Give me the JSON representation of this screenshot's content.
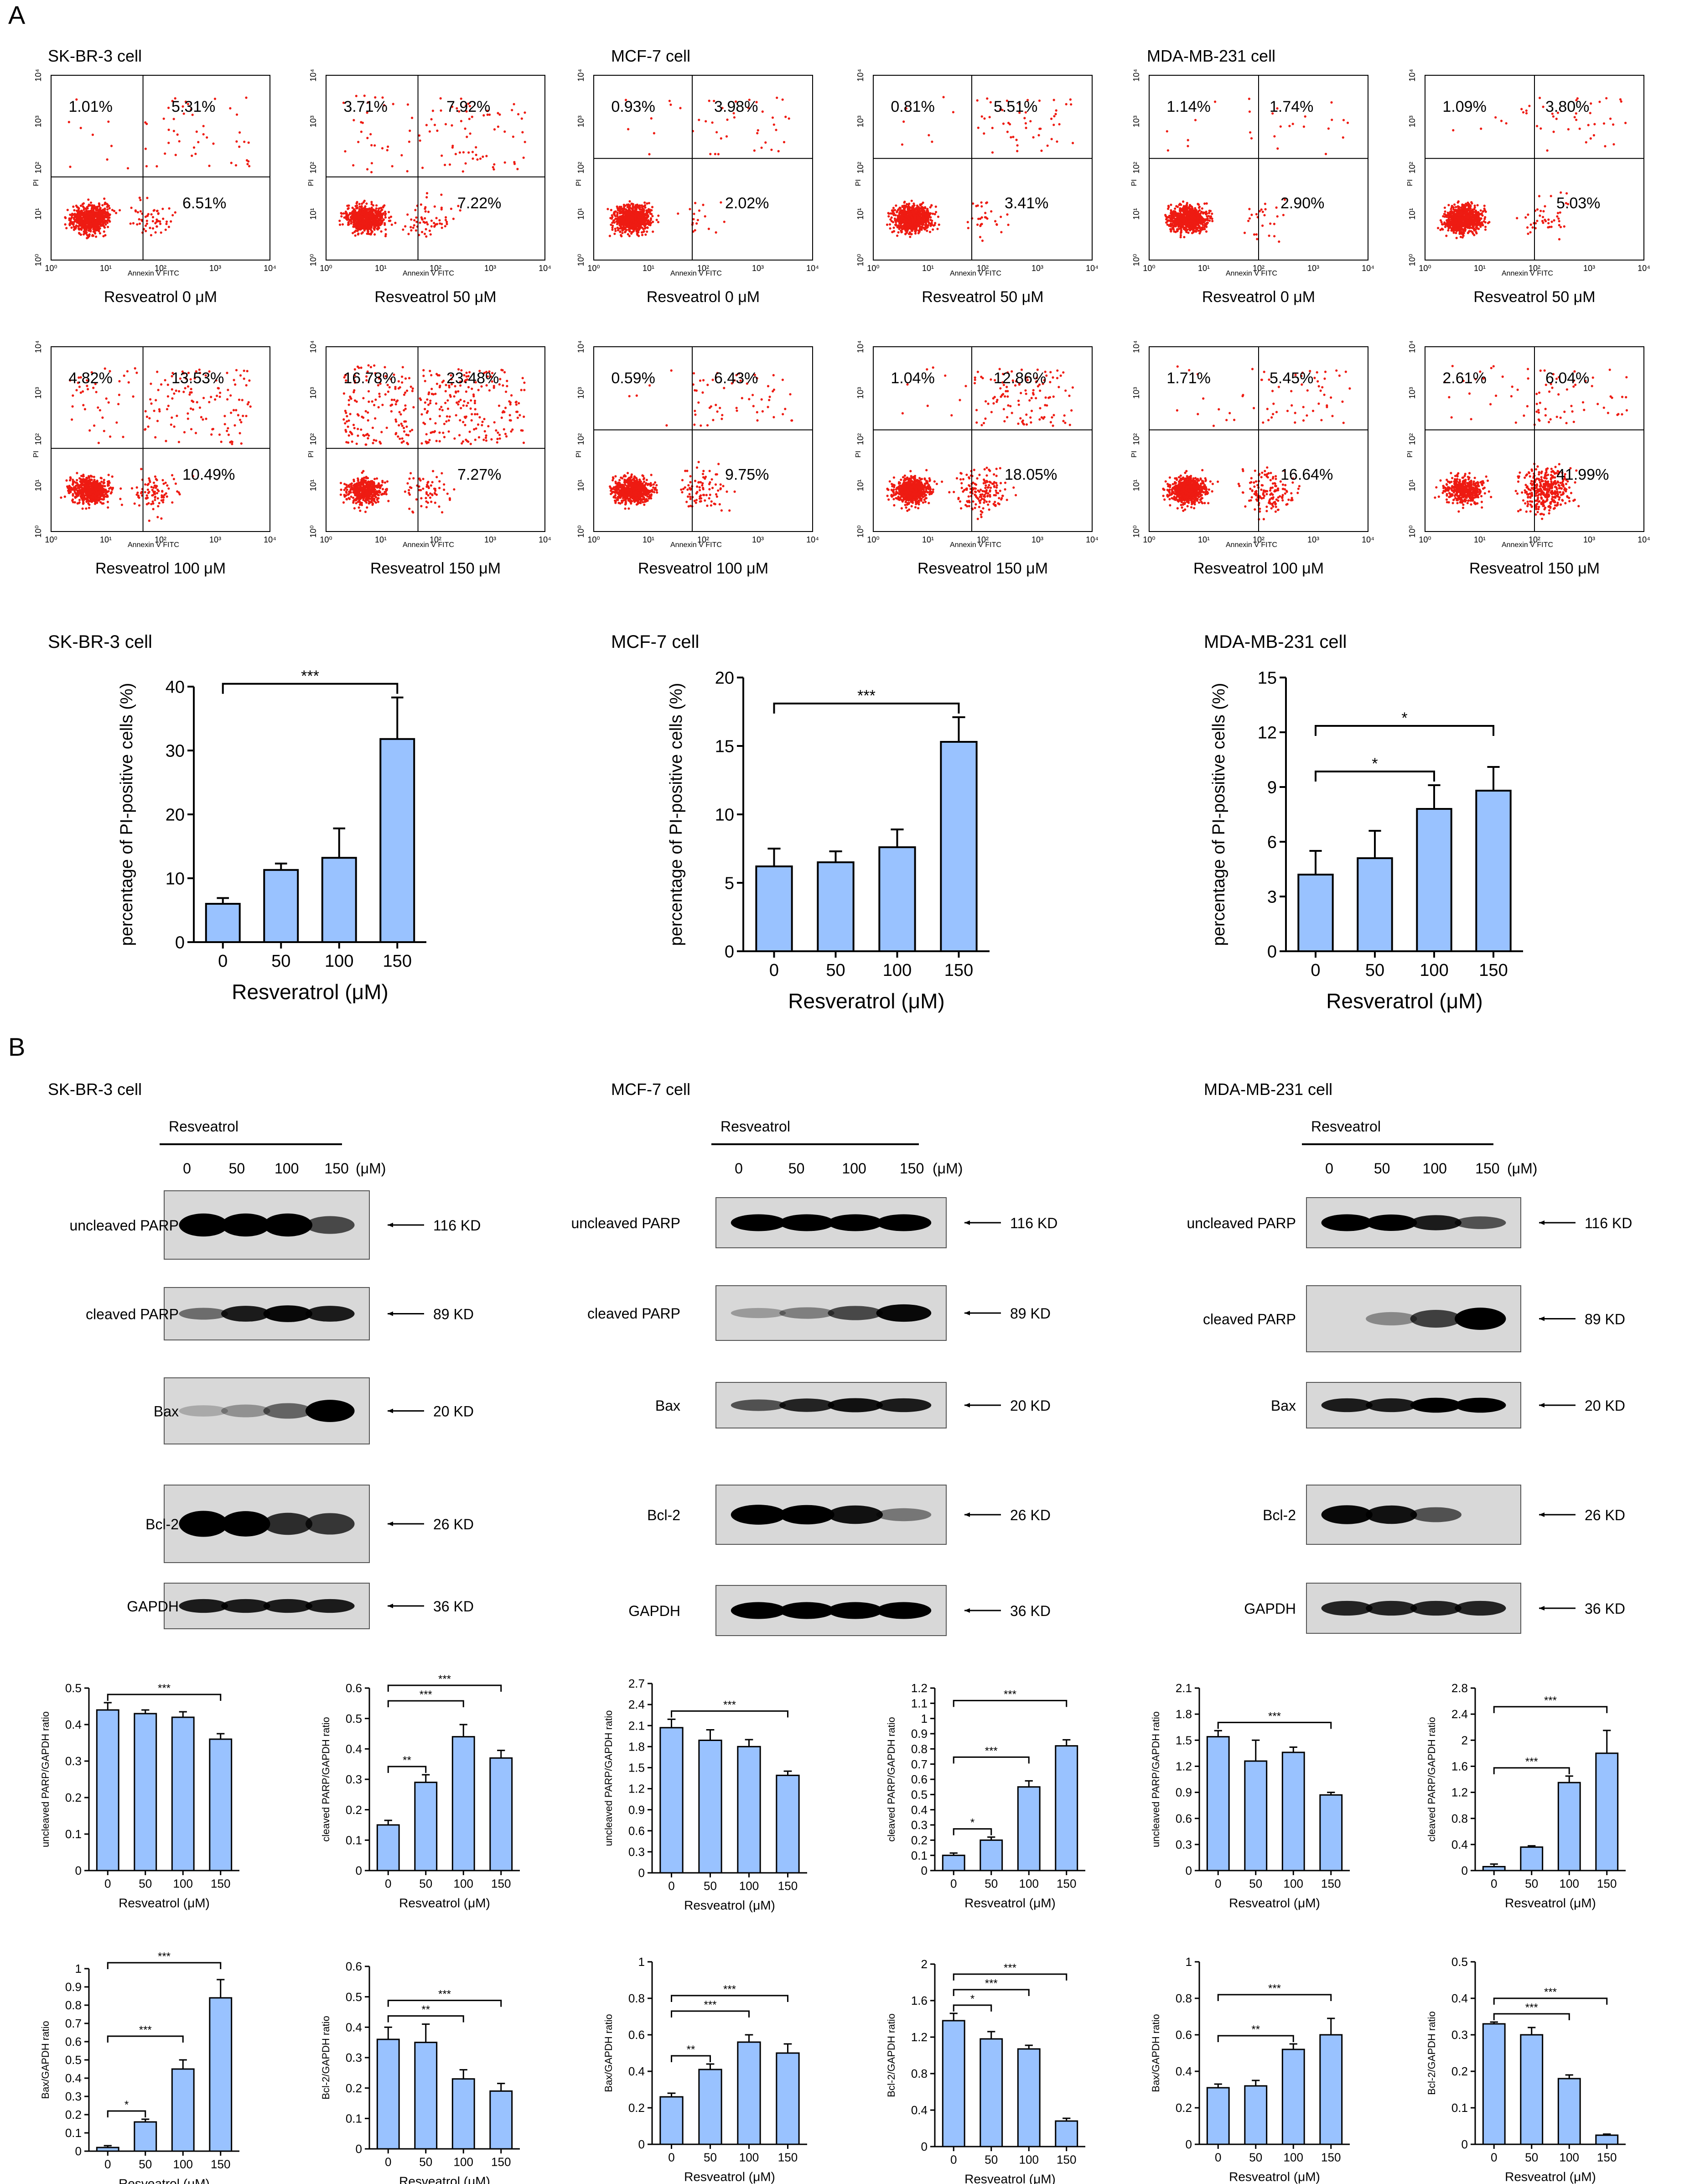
{
  "panel_letters": [
    "A",
    "B"
  ],
  "flow": {
    "quadrant_axes": {
      "x_label": "Annexin V  FITC",
      "y_label": "PI"
    },
    "ticks": [
      "10⁰",
      "10¹",
      "10²",
      "10³",
      "10⁴"
    ],
    "cell_lines": [
      {
        "name": "SK-BR-3 cell",
        "conditions": [
          {
            "label": "Resveatrol 0 μM",
            "ul": "1.01%",
            "ur": "5.31%",
            "lr": "6.51%"
          },
          {
            "label": "Resveatrol 50 μM",
            "ul": "3.71%",
            "ur": "7.92%",
            "lr": "7.22%"
          },
          {
            "label": "Resveatrol 100 μM",
            "ul": "4.82%",
            "ur": "13.53%",
            "lr": "10.49%"
          },
          {
            "label": "Resveatrol 150 μM",
            "ul": "16.78%",
            "ur": "23.48%",
            "lr": "7.27%"
          }
        ]
      },
      {
        "name": "MCF-7 cell",
        "conditions": [
          {
            "label": "Resveatrol 0 μM",
            "ul": "0.93%",
            "ur": "3.98%",
            "lr": "2.02%"
          },
          {
            "label": "Resveatrol 50 μM",
            "ul": "0.81%",
            "ur": "5.51%",
            "lr": "3.41%"
          },
          {
            "label": "Resveatrol 100 μM",
            "ul": "0.59%",
            "ur": "6.43%",
            "lr": "9.75%"
          },
          {
            "label": "Resveatrol 150 μM",
            "ul": "1.04%",
            "ur": "12.86%",
            "lr": "18.05%"
          }
        ]
      },
      {
        "name": "MDA-MB-231 cell",
        "conditions": [
          {
            "label": "Resveatrol 0 μM",
            "ul": "1.14%",
            "ur": "1.74%",
            "lr": "2.90%"
          },
          {
            "label": "Resveatrol 50 μM",
            "ul": "1.09%",
            "ur": "3.80%",
            "lr": "5.03%"
          },
          {
            "label": "Resveatrol 100 μM",
            "ul": "1.71%",
            "ur": "5.45%",
            "lr": "16.64%"
          },
          {
            "label": "Resveatrol 150 μM",
            "ul": "2.61%",
            "ur": "6.04%",
            "lr": "41.99%"
          }
        ]
      }
    ]
  },
  "blots": {
    "treatment": "Resveatrol",
    "doses": [
      "0",
      "50",
      "100",
      "150"
    ],
    "unit": "(μM)",
    "cell_lines": [
      "SK-BR-3 cell",
      "MCF-7 cell",
      "MDA-MB-231 cell"
    ],
    "rows": [
      {
        "protein": "uncleaved PARP",
        "size": "116 KD"
      },
      {
        "protein": "cleaved PARP",
        "size": "89 KD"
      },
      {
        "protein": "Bax",
        "size": "20 KD"
      },
      {
        "protein": "Bcl-2",
        "size": "26 KD"
      },
      {
        "protein": "GAPDH",
        "size": "36 KD"
      }
    ],
    "intensities": [
      [
        [
          1,
          1,
          1,
          0.55
        ],
        [
          0.35,
          0.8,
          0.9,
          0.8
        ],
        [
          0.02,
          0.15,
          0.4,
          1
        ],
        [
          1,
          0.95,
          0.7,
          0.65
        ],
        [
          0.8,
          0.8,
          0.8,
          0.8
        ]
      ],
      [
        [
          1,
          1,
          1,
          1
        ],
        [
          0.1,
          0.25,
          0.55,
          0.9
        ],
        [
          0.5,
          0.75,
          0.85,
          0.8
        ],
        [
          1,
          0.95,
          0.85,
          0.3
        ],
        [
          1,
          1,
          1,
          1
        ]
      ],
      [
        [
          1,
          0.95,
          0.8,
          0.5
        ],
        [
          0,
          0.2,
          0.6,
          1
        ],
        [
          0.8,
          0.8,
          0.95,
          0.95
        ],
        [
          0.9,
          0.85,
          0.5,
          0
        ],
        [
          0.75,
          0.75,
          0.75,
          0.75
        ]
      ]
    ]
  },
  "chart_data": [
    {
      "id": "A-SKBR3",
      "type": "bar",
      "title": "SK-BR-3 cell",
      "categories": [
        "0",
        "50",
        "100",
        "150"
      ],
      "values": [
        6.0,
        11.3,
        13.2,
        31.8
      ],
      "errors": [
        0.9,
        1.0,
        4.6,
        6.5
      ],
      "ylim": [
        0,
        40
      ],
      "yticks": [
        0,
        10,
        20,
        30,
        40
      ],
      "xlabel": "Resveratrol (μM)",
      "ylabel": "percentage of PI-positive cells (%)",
      "sig": [
        {
          "from": 0,
          "to": 3,
          "label": "***"
        }
      ]
    },
    {
      "id": "A-MCF7",
      "type": "bar",
      "title": "MCF-7 cell",
      "categories": [
        "0",
        "50",
        "100",
        "150"
      ],
      "values": [
        6.2,
        6.5,
        7.6,
        15.3
      ],
      "errors": [
        1.3,
        0.8,
        1.3,
        1.8
      ],
      "ylim": [
        0,
        20
      ],
      "yticks": [
        0,
        5,
        10,
        15,
        20
      ],
      "xlabel": "Resveratrol (μM)",
      "ylabel": "percentage of PI-positive cells (%)",
      "sig": [
        {
          "from": 0,
          "to": 3,
          "label": "***"
        }
      ]
    },
    {
      "id": "A-MDA",
      "type": "bar",
      "title": "MDA-MB-231 cell",
      "categories": [
        "0",
        "50",
        "100",
        "150"
      ],
      "values": [
        4.2,
        5.1,
        7.8,
        8.8
      ],
      "errors": [
        1.3,
        1.5,
        1.3,
        1.3
      ],
      "ylim": [
        0,
        15
      ],
      "yticks": [
        0,
        3,
        6,
        9,
        12,
        15
      ],
      "xlabel": "Resveratrol (μM)",
      "ylabel": "percentage of PI-positive cells (%)",
      "sig": [
        {
          "from": 0,
          "to": 2,
          "label": "*"
        },
        {
          "from": 0,
          "to": 3,
          "label": "*"
        }
      ]
    },
    {
      "id": "B-SKBR3-uPARP",
      "type": "bar",
      "categories": [
        "0",
        "50",
        "100",
        "150"
      ],
      "values": [
        0.44,
        0.43,
        0.42,
        0.36
      ],
      "errors": [
        0.02,
        0.01,
        0.015,
        0.015
      ],
      "ylim": [
        0,
        0.5
      ],
      "yticks": [
        0,
        0.1,
        0.2,
        0.3,
        0.4,
        0.5
      ],
      "xlabel": "Resveatrol (μM)",
      "ylabel": "uncleaved PARP/GAPDH ratio",
      "sig": [
        {
          "from": 0,
          "to": 3,
          "label": "***"
        }
      ]
    },
    {
      "id": "B-SKBR3-cPARP",
      "type": "bar",
      "categories": [
        "0",
        "50",
        "100",
        "150"
      ],
      "values": [
        0.15,
        0.29,
        0.44,
        0.37
      ],
      "errors": [
        0.015,
        0.025,
        0.04,
        0.025
      ],
      "ylim": [
        0,
        0.6
      ],
      "yticks": [
        0,
        0.1,
        0.2,
        0.3,
        0.4,
        0.5,
        0.6
      ],
      "xlabel": "Resveatrol (μM)",
      "ylabel": "cleaved PARP/GAPDH ratio",
      "sig": [
        {
          "from": 0,
          "to": 1,
          "label": "**"
        },
        {
          "from": 0,
          "to": 2,
          "label": "***"
        },
        {
          "from": 0,
          "to": 3,
          "label": "***"
        }
      ]
    },
    {
      "id": "B-MCF7-uPARP",
      "type": "bar",
      "categories": [
        "0",
        "50",
        "100",
        "150"
      ],
      "values": [
        2.07,
        1.89,
        1.8,
        1.39
      ],
      "errors": [
        0.12,
        0.15,
        0.1,
        0.06
      ],
      "ylim": [
        0,
        2.7
      ],
      "yticks": [
        0,
        0.3,
        0.6,
        0.9,
        1.2,
        1.5,
        1.8,
        2.1,
        2.4,
        2.7
      ],
      "xlabel": "Resveatrol (μM)",
      "ylabel": "uncleaved PARP/GAPDH ratio",
      "sig": [
        {
          "from": 0,
          "to": 3,
          "label": "***"
        }
      ]
    },
    {
      "id": "B-MCF7-cPARP",
      "type": "bar",
      "categories": [
        "0",
        "50",
        "100",
        "150"
      ],
      "values": [
        0.1,
        0.2,
        0.55,
        0.82
      ],
      "errors": [
        0.015,
        0.02,
        0.04,
        0.04
      ],
      "ylim": [
        0,
        1.2
      ],
      "yticks": [
        0,
        0.1,
        0.2,
        0.3,
        0.4,
        0.5,
        0.6,
        0.7,
        0.8,
        0.9,
        1.0,
        1.1,
        1.2
      ],
      "xlabel": "Resveatrol (μM)",
      "ylabel": "cleaved PARP/GAPDH ratio",
      "sig": [
        {
          "from": 0,
          "to": 1,
          "label": "*"
        },
        {
          "from": 0,
          "to": 2,
          "label": "***"
        },
        {
          "from": 0,
          "to": 3,
          "label": "***"
        }
      ]
    },
    {
      "id": "B-MDA-uPARP",
      "type": "bar",
      "categories": [
        "0",
        "50",
        "100",
        "150"
      ],
      "values": [
        1.54,
        1.26,
        1.36,
        0.87
      ],
      "errors": [
        0.07,
        0.24,
        0.06,
        0.03
      ],
      "ylim": [
        0,
        2.1
      ],
      "yticks": [
        0,
        0.3,
        0.6,
        0.9,
        1.2,
        1.5,
        1.8,
        2.1
      ],
      "xlabel": "Resveatrol (μM)",
      "ylabel": "uncleaved PARP/GAPDH ratio",
      "sig": [
        {
          "from": 0,
          "to": 3,
          "label": "***"
        }
      ]
    },
    {
      "id": "B-MDA-cPARP",
      "type": "bar",
      "categories": [
        "0",
        "50",
        "100",
        "150"
      ],
      "values": [
        0.06,
        0.36,
        1.35,
        1.8
      ],
      "errors": [
        0.04,
        0.02,
        0.1,
        0.35
      ],
      "ylim": [
        0,
        2.8
      ],
      "yticks": [
        0,
        0.4,
        0.8,
        1.2,
        1.6,
        2.0,
        2.4,
        2.8
      ],
      "xlabel": "Resveatrol (μM)",
      "ylabel": "cleaved PARP/GAPDH ratio",
      "sig": [
        {
          "from": 0,
          "to": 2,
          "label": "***"
        },
        {
          "from": 0,
          "to": 3,
          "label": "***"
        }
      ]
    },
    {
      "id": "B-SKBR3-Bax",
      "type": "bar",
      "categories": [
        "0",
        "50",
        "100",
        "150"
      ],
      "values": [
        0.02,
        0.16,
        0.45,
        0.84
      ],
      "errors": [
        0.01,
        0.015,
        0.05,
        0.1
      ],
      "ylim": [
        0,
        1.0
      ],
      "yticks": [
        0,
        0.1,
        0.2,
        0.3,
        0.4,
        0.5,
        0.6,
        0.7,
        0.8,
        0.9,
        1.0
      ],
      "xlabel": "Resveatrol (μM)",
      "ylabel": "Bax/GAPDH ratio",
      "sig": [
        {
          "from": 0,
          "to": 1,
          "label": "*"
        },
        {
          "from": 0,
          "to": 2,
          "label": "***"
        },
        {
          "from": 0,
          "to": 3,
          "label": "***"
        }
      ]
    },
    {
      "id": "B-SKBR3-Bcl2",
      "type": "bar",
      "categories": [
        "0",
        "50",
        "100",
        "150"
      ],
      "values": [
        0.36,
        0.35,
        0.23,
        0.19
      ],
      "errors": [
        0.04,
        0.06,
        0.03,
        0.025
      ],
      "ylim": [
        0,
        0.6
      ],
      "yticks": [
        0,
        0.1,
        0.2,
        0.3,
        0.4,
        0.5,
        0.6
      ],
      "xlabel": "Resveatrol (μM)",
      "ylabel": "Bcl-2/GAPDH ratio",
      "sig": [
        {
          "from": 0,
          "to": 2,
          "label": "**"
        },
        {
          "from": 0,
          "to": 3,
          "label": "***"
        }
      ]
    },
    {
      "id": "B-MCF7-Bax",
      "type": "bar",
      "categories": [
        "0",
        "50",
        "100",
        "150"
      ],
      "values": [
        0.26,
        0.41,
        0.56,
        0.5
      ],
      "errors": [
        0.02,
        0.03,
        0.04,
        0.05
      ],
      "ylim": [
        0,
        1.0
      ],
      "yticks": [
        0,
        0.2,
        0.4,
        0.6,
        0.8,
        1.0
      ],
      "xlabel": "Resveatrol (μM)",
      "ylabel": "Bax/GAPDH ratio",
      "sig": [
        {
          "from": 0,
          "to": 1,
          "label": "**"
        },
        {
          "from": 0,
          "to": 2,
          "label": "***"
        },
        {
          "from": 0,
          "to": 3,
          "label": "***"
        }
      ]
    },
    {
      "id": "B-MCF7-Bcl2",
      "type": "bar",
      "categories": [
        "0",
        "50",
        "100",
        "150"
      ],
      "values": [
        1.38,
        1.18,
        1.07,
        0.28
      ],
      "errors": [
        0.08,
        0.08,
        0.04,
        0.03
      ],
      "ylim": [
        0,
        2.0
      ],
      "yticks": [
        0,
        0.4,
        0.8,
        1.2,
        1.6,
        2.0
      ],
      "xlabel": "Resveatrol (μM)",
      "ylabel": "Bcl-2/GAPDH ratio",
      "sig": [
        {
          "from": 0,
          "to": 1,
          "label": "*"
        },
        {
          "from": 0,
          "to": 2,
          "label": "***"
        },
        {
          "from": 0,
          "to": 3,
          "label": "***"
        }
      ]
    },
    {
      "id": "B-MDA-Bax",
      "type": "bar",
      "categories": [
        "0",
        "50",
        "100",
        "150"
      ],
      "values": [
        0.31,
        0.32,
        0.52,
        0.6
      ],
      "errors": [
        0.02,
        0.03,
        0.03,
        0.09
      ],
      "ylim": [
        0,
        1.0
      ],
      "yticks": [
        0,
        0.2,
        0.4,
        0.6,
        0.8,
        1.0
      ],
      "xlabel": "Resveatrol (μM)",
      "ylabel": "Bax/GAPDH ratio",
      "sig": [
        {
          "from": 0,
          "to": 2,
          "label": "**"
        },
        {
          "from": 0,
          "to": 3,
          "label": "***"
        }
      ]
    },
    {
      "id": "B-MDA-Bcl2",
      "type": "bar",
      "categories": [
        "0",
        "50",
        "100",
        "150"
      ],
      "values": [
        0.33,
        0.3,
        0.18,
        0.025
      ],
      "errors": [
        0.005,
        0.02,
        0.01,
        0.003
      ],
      "ylim": [
        0,
        0.5
      ],
      "yticks": [
        0,
        0.1,
        0.2,
        0.3,
        0.4,
        0.5
      ],
      "xlabel": "Resveatrol (μM)",
      "ylabel": "Bcl-2/GAPDH ratio",
      "sig": [
        {
          "from": 0,
          "to": 2,
          "label": "***"
        },
        {
          "from": 0,
          "to": 3,
          "label": "***"
        }
      ]
    }
  ],
  "colors": {
    "bar_fill": "#99c2ff",
    "dot": "#ee1b12",
    "dot_dense": "#e4120b"
  }
}
